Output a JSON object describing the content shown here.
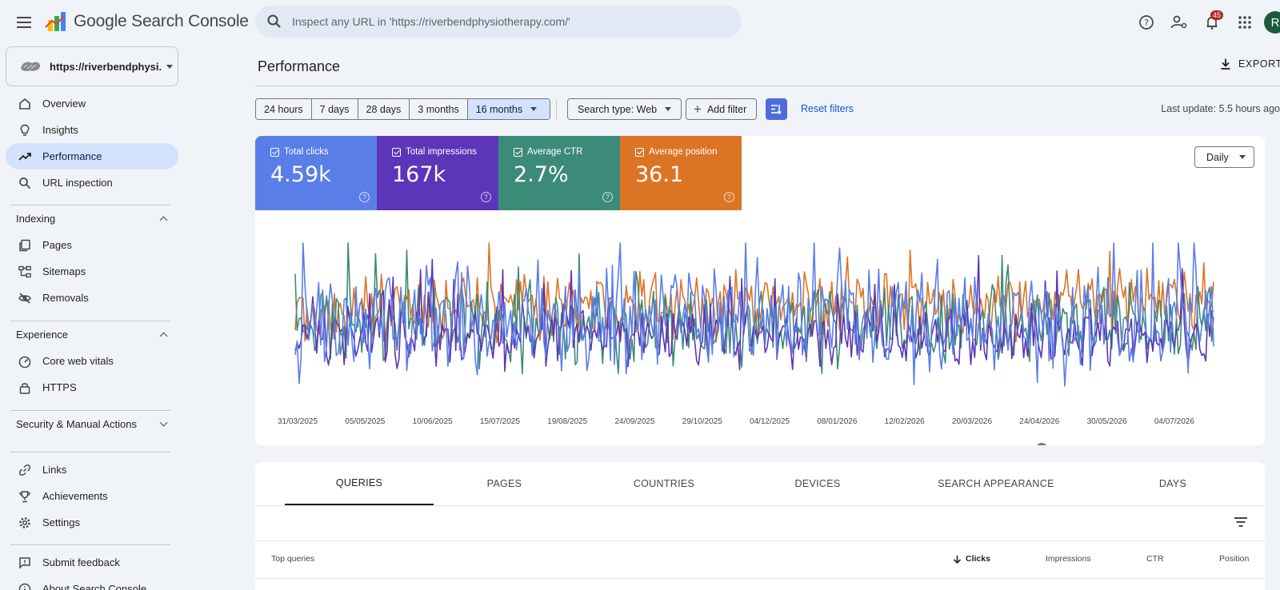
{
  "app": {
    "title": "Google Search Console",
    "search_placeholder": "Inspect any URL in 'https://riverbendphysiotherapy.com/'",
    "notification_count": "45",
    "avatar_letter": "R",
    "icons": [
      "menu-icon",
      "search-icon",
      "help-icon",
      "manage-accounts-icon",
      "notifications-icon",
      "apps-icon"
    ]
  },
  "sidebar": {
    "property": "https://riverbendphysi...",
    "items_top": [
      {
        "label": "Overview",
        "icon": "home-icon"
      },
      {
        "label": "Insights",
        "icon": "lightbulb-icon"
      },
      {
        "label": "Performance",
        "icon": "trending-up-icon",
        "active": true
      },
      {
        "label": "URL inspection",
        "icon": "search-icon"
      }
    ],
    "indexing": {
      "title": "Indexing",
      "items": [
        {
          "label": "Pages",
          "icon": "pages-icon"
        },
        {
          "label": "Sitemaps",
          "icon": "sitemap-icon"
        },
        {
          "label": "Removals",
          "icon": "visibility-off-icon"
        }
      ]
    },
    "experience": {
      "title": "Experience",
      "items": [
        {
          "label": "Core web vitals",
          "icon": "speed-icon"
        },
        {
          "label": "HTTPS",
          "icon": "lock-icon"
        }
      ]
    },
    "security": {
      "title": "Security & Manual Actions"
    },
    "items_bottom": [
      {
        "label": "Links",
        "icon": "link-icon"
      },
      {
        "label": "Achievements",
        "icon": "trophy-icon"
      },
      {
        "label": "Settings",
        "icon": "gear-icon"
      }
    ],
    "footer_items": [
      {
        "label": "Submit feedback",
        "icon": "feedback-icon"
      },
      {
        "label": "About Search Console",
        "icon": "info-icon"
      }
    ]
  },
  "main": {
    "title": "Performance",
    "export_label": "EXPORT",
    "date_ranges": [
      "24 hours",
      "7 days",
      "28 days",
      "3 months",
      "16 months"
    ],
    "selected_range": "16 months",
    "search_type": "Search type: Web",
    "add_filter": "Add filter",
    "reset_filters": "Reset filters",
    "last_update": "Last update: 5.5 hours ago",
    "granularity": "Daily",
    "metrics": [
      {
        "label": "Total clicks",
        "value": "4.59k",
        "color": "#5a7ee8"
      },
      {
        "label": "Total impressions",
        "value": "167k",
        "color": "#5c35b8"
      },
      {
        "label": "Average CTR",
        "value": "2.7%",
        "color": "#3c8a78"
      },
      {
        "label": "Average position",
        "value": "36.1",
        "color": "#dc7426"
      }
    ],
    "annotation_marker": "1",
    "tabs": [
      "QUERIES",
      "PAGES",
      "COUNTRIES",
      "DEVICES",
      "SEARCH APPEARANCE",
      "DAYS"
    ],
    "active_tab": "QUERIES",
    "table_headers": {
      "first": "Top queries",
      "columns": [
        "Clicks",
        "Impressions",
        "CTR",
        "Position"
      ],
      "sorted_by": "Clicks"
    }
  },
  "chart_data": {
    "type": "line",
    "x_tick_labels": [
      "31/03/2025",
      "05/05/2025",
      "10/06/2025",
      "15/07/2025",
      "19/08/2025",
      "24/09/2025",
      "29/10/2025",
      "04/12/2025",
      "08/01/2026",
      "12/02/2026",
      "20/03/2026",
      "24/04/2026",
      "30/05/2026",
      "04/07/2026"
    ],
    "x_range": [
      "27/03/2025",
      "17/07/2026"
    ],
    "y_axis_labels_shown": false,
    "grid": false,
    "legend": "metric cards above chart",
    "series": [
      {
        "name": "Total clicks",
        "color": "#5a7ee8",
        "relative_level": 0.48,
        "relative_variation": 0.3
      },
      {
        "name": "Total impressions",
        "color": "#5c35b8",
        "relative_level": 0.38,
        "relative_variation": 0.18
      },
      {
        "name": "Average CTR",
        "color": "#3c8a78",
        "relative_level": 0.45,
        "relative_variation": 0.22
      },
      {
        "name": "Average position",
        "color": "#dc7426",
        "relative_level": 0.55,
        "relative_variation": 0.18
      }
    ]
  }
}
